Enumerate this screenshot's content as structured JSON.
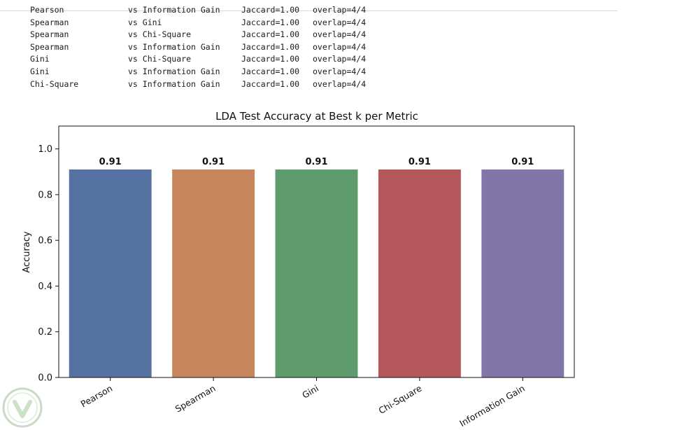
{
  "console_output": {
    "rows": [
      {
        "a": "Pearson",
        "b": "vs Information Gain",
        "jaccard": "Jaccard=1.00",
        "overlap": "overlap=4/4"
      },
      {
        "a": "Spearman",
        "b": "vs Gini",
        "jaccard": "Jaccard=1.00",
        "overlap": "overlap=4/4"
      },
      {
        "a": "Spearman",
        "b": "vs Chi-Square",
        "jaccard": "Jaccard=1.00",
        "overlap": "overlap=4/4"
      },
      {
        "a": "Spearman",
        "b": "vs Information Gain",
        "jaccard": "Jaccard=1.00",
        "overlap": "overlap=4/4"
      },
      {
        "a": "Gini",
        "b": "vs Chi-Square",
        "jaccard": "Jaccard=1.00",
        "overlap": "overlap=4/4"
      },
      {
        "a": "Gini",
        "b": "vs Information Gain",
        "jaccard": "Jaccard=1.00",
        "overlap": "overlap=4/4"
      },
      {
        "a": "Chi-Square",
        "b": "vs Information Gain",
        "jaccard": "Jaccard=1.00",
        "overlap": "overlap=4/4"
      }
    ]
  },
  "chart_data": {
    "type": "bar",
    "title": "LDA Test Accuracy at Best k per Metric",
    "xlabel": "",
    "ylabel": "Accuracy",
    "categories": [
      "Pearson",
      "Spearman",
      "Gini",
      "Chi-Square",
      "Information Gain"
    ],
    "values": [
      0.91,
      0.91,
      0.91,
      0.91,
      0.91
    ],
    "data_labels": [
      "0.91",
      "0.91",
      "0.91",
      "0.91",
      "0.91"
    ],
    "colors": [
      "#5471a1",
      "#c7865c",
      "#5f9c6d",
      "#b3575b",
      "#8275a8"
    ],
    "ylim": [
      0,
      1.1
    ],
    "yticks": [
      "0.0",
      "0.2",
      "0.4",
      "0.6",
      "0.8",
      "1.0"
    ],
    "grid": false,
    "legend": "none"
  }
}
